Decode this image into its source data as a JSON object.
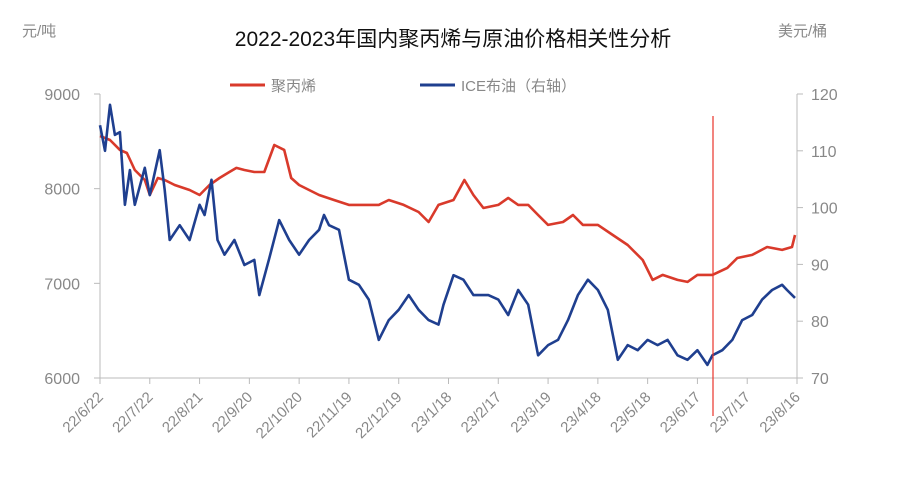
{
  "chart_data": {
    "type": "line",
    "title": "2022-2023年国内聚丙烯与原油价格相关性分析",
    "ylabel_left": "元/吨",
    "ylabel_right": "美元/桶",
    "ylim_left": [
      6000,
      9000
    ],
    "yticks_left": [
      6000,
      7000,
      8000,
      9000
    ],
    "ylim_right": [
      70,
      120
    ],
    "yticks_right": [
      70,
      80,
      90,
      100,
      110,
      120
    ],
    "categories": [
      "22/6/22",
      "22/7/22",
      "22/8/21",
      "22/9/20",
      "22/10/20",
      "22/11/19",
      "22/12/19",
      "23/1/18",
      "23/2/17",
      "23/3/19",
      "23/4/18",
      "23/5/18",
      "23/6/17",
      "23/7/17",
      "23/8/16"
    ],
    "legend_position": "top-center",
    "grid": false,
    "series": [
      {
        "name": "聚丙烯",
        "axis": "left",
        "color": "#d93a2b",
        "points": [
          [
            0,
            8556
          ],
          [
            0.2,
            8514
          ],
          [
            0.4,
            8409
          ],
          [
            0.54,
            8377
          ],
          [
            0.7,
            8197
          ],
          [
            0.9,
            8092
          ],
          [
            1,
            7933
          ],
          [
            1.16,
            8113
          ],
          [
            1.3,
            8092
          ],
          [
            1.5,
            8039
          ],
          [
            1.8,
            7986
          ],
          [
            2,
            7933
          ],
          [
            2.2,
            8039
          ],
          [
            2.4,
            8113
          ],
          [
            2.6,
            8176
          ],
          [
            2.74,
            8219
          ],
          [
            2.9,
            8197
          ],
          [
            3.1,
            8176
          ],
          [
            3.3,
            8176
          ],
          [
            3.5,
            8461
          ],
          [
            3.7,
            8409
          ],
          [
            3.84,
            8113
          ],
          [
            4,
            8039
          ],
          [
            4.2,
            7986
          ],
          [
            4.4,
            7933
          ],
          [
            4.7,
            7880
          ],
          [
            5,
            7828
          ],
          [
            5.3,
            7828
          ],
          [
            5.6,
            7828
          ],
          [
            5.8,
            7880
          ],
          [
            6.1,
            7828
          ],
          [
            6.4,
            7754
          ],
          [
            6.6,
            7648
          ],
          [
            6.8,
            7828
          ],
          [
            7.1,
            7880
          ],
          [
            7.32,
            8092
          ],
          [
            7.5,
            7933
          ],
          [
            7.7,
            7796
          ],
          [
            8,
            7828
          ],
          [
            8.2,
            7902
          ],
          [
            8.4,
            7828
          ],
          [
            8.6,
            7828
          ],
          [
            8.8,
            7722
          ],
          [
            9,
            7617
          ],
          [
            9.3,
            7648
          ],
          [
            9.5,
            7722
          ],
          [
            9.7,
            7617
          ],
          [
            10,
            7617
          ],
          [
            10.3,
            7511
          ],
          [
            10.6,
            7405
          ],
          [
            10.9,
            7247
          ],
          [
            11.1,
            7036
          ],
          [
            11.3,
            7089
          ],
          [
            11.6,
            7036
          ],
          [
            11.8,
            7015
          ],
          [
            12,
            7089
          ],
          [
            12.3,
            7089
          ],
          [
            12.6,
            7163
          ],
          [
            12.8,
            7268
          ],
          [
            13.1,
            7300
          ],
          [
            13.4,
            7384
          ],
          [
            13.7,
            7353
          ],
          [
            13.9,
            7384
          ],
          [
            13.96,
            7511
          ]
        ]
      },
      {
        "name": "ICE布油（右轴）",
        "axis": "right",
        "color": "#1f3f8f",
        "points": [
          [
            0,
            114.5
          ],
          [
            0.1,
            110.0
          ],
          [
            0.2,
            118.1
          ],
          [
            0.3,
            112.8
          ],
          [
            0.4,
            113.3
          ],
          [
            0.5,
            100.5
          ],
          [
            0.6,
            106.6
          ],
          [
            0.7,
            100.5
          ],
          [
            0.9,
            107.0
          ],
          [
            1,
            102.2
          ],
          [
            1.2,
            110.1
          ],
          [
            1.3,
            103.1
          ],
          [
            1.4,
            94.3
          ],
          [
            1.6,
            96.9
          ],
          [
            1.8,
            94.3
          ],
          [
            2,
            100.5
          ],
          [
            2.1,
            98.7
          ],
          [
            2.24,
            104.9
          ],
          [
            2.36,
            94.3
          ],
          [
            2.5,
            91.7
          ],
          [
            2.7,
            94.3
          ],
          [
            2.9,
            89.9
          ],
          [
            3.1,
            90.8
          ],
          [
            3.2,
            84.6
          ],
          [
            3.4,
            91.1
          ],
          [
            3.6,
            97.8
          ],
          [
            3.8,
            94.3
          ],
          [
            4,
            91.7
          ],
          [
            4.2,
            94.3
          ],
          [
            4.4,
            96.1
          ],
          [
            4.5,
            98.7
          ],
          [
            4.6,
            96.9
          ],
          [
            4.8,
            96.1
          ],
          [
            5,
            87.3
          ],
          [
            5.2,
            86.4
          ],
          [
            5.4,
            83.8
          ],
          [
            5.6,
            76.7
          ],
          [
            5.8,
            80.2
          ],
          [
            6,
            82.0
          ],
          [
            6.2,
            84.6
          ],
          [
            6.4,
            82.0
          ],
          [
            6.6,
            80.2
          ],
          [
            6.8,
            79.4
          ],
          [
            6.9,
            82.9
          ],
          [
            7.1,
            88.1
          ],
          [
            7.3,
            87.3
          ],
          [
            7.5,
            84.6
          ],
          [
            7.8,
            84.6
          ],
          [
            8,
            83.8
          ],
          [
            8.2,
            81.1
          ],
          [
            8.4,
            85.5
          ],
          [
            8.6,
            82.9
          ],
          [
            8.8,
            74.0
          ],
          [
            9,
            75.8
          ],
          [
            9.2,
            76.7
          ],
          [
            9.4,
            80.2
          ],
          [
            9.6,
            84.6
          ],
          [
            9.8,
            87.3
          ],
          [
            10,
            85.5
          ],
          [
            10.2,
            82.0
          ],
          [
            10.4,
            73.2
          ],
          [
            10.6,
            75.8
          ],
          [
            10.8,
            74.9
          ],
          [
            11,
            76.7
          ],
          [
            11.2,
            75.8
          ],
          [
            11.4,
            76.7
          ],
          [
            11.6,
            74.0
          ],
          [
            11.8,
            73.2
          ],
          [
            12,
            74.9
          ],
          [
            12.2,
            72.3
          ],
          [
            12.3,
            74.0
          ],
          [
            12.5,
            74.9
          ],
          [
            12.7,
            76.7
          ],
          [
            12.9,
            80.2
          ],
          [
            13.1,
            81.1
          ],
          [
            13.3,
            83.8
          ],
          [
            13.5,
            85.5
          ],
          [
            13.7,
            86.4
          ],
          [
            13.8,
            85.5
          ],
          [
            13.96,
            84.1
          ]
        ]
      }
    ]
  }
}
